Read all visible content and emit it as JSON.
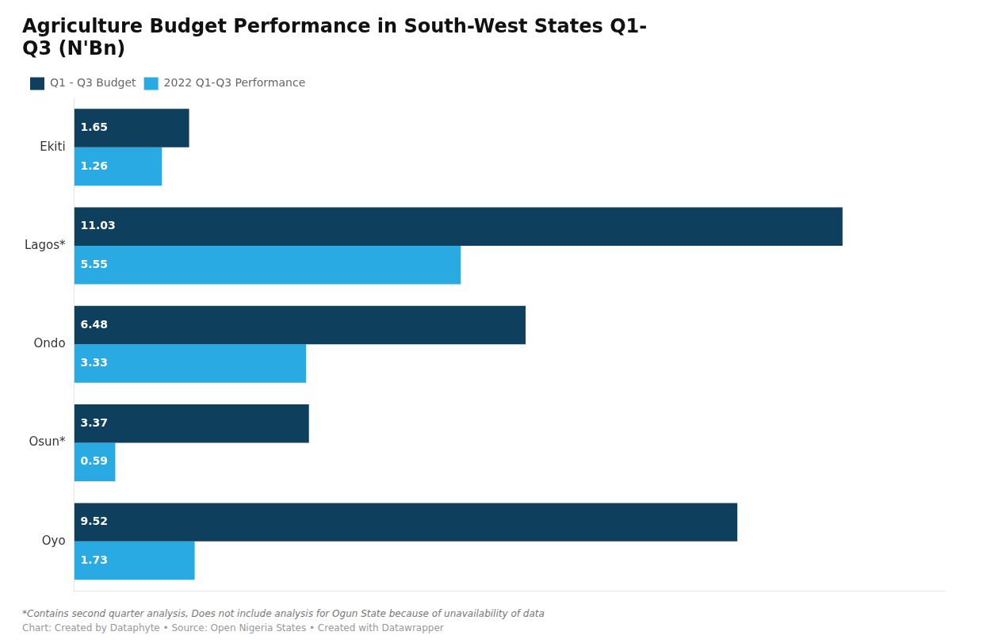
{
  "chart_data": {
    "type": "bar",
    "orientation": "horizontal",
    "title": "Agriculture Budget Performance in South-West States Q1-\nQ3 (N'Bn)",
    "categories": [
      "Ekiti",
      "Lagos*",
      "Ondo",
      "Osun*",
      "Oyo"
    ],
    "series": [
      {
        "name": "Q1 - Q3 Budget",
        "color": "#0e3f5c",
        "values": [
          1.65,
          11.03,
          6.48,
          3.37,
          9.52
        ]
      },
      {
        "name": "2022 Q1-Q3 Performance",
        "color": "#29aae2",
        "values": [
          1.26,
          5.55,
          3.33,
          0.59,
          1.73
        ]
      }
    ],
    "xlim": [
      0,
      12.5
    ],
    "tick_labels": "y",
    "data_labels": true,
    "legend": "upper left",
    "grid": false,
    "annotations": [
      "*Contains second quarter analysis, Does not include analysis for Ogun State because of unavailability of data",
      "Chart: Created by Dataphyte • Source: Open Nigeria States • Created with Datawrapper"
    ]
  }
}
